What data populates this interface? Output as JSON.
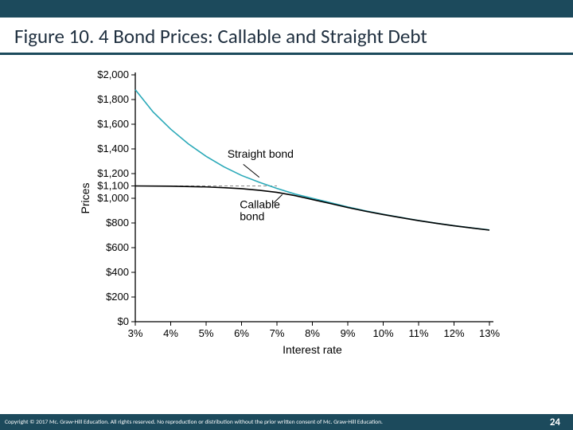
{
  "header": {
    "bar_color": "#1c4a5c",
    "title": "Figure 10. 4 Bond Prices: Callable and Straight Debt",
    "title_color": "#203040",
    "underline_color": "#1c4a5c"
  },
  "footer": {
    "bar_color": "#1c4a5c",
    "copyright": "Copyright © 2017 Mc. Graw-Hill Education. All rights reserved. No reproduction or distribution without the prior written consent of Mc. Graw-Hill Education.",
    "page_number": "24"
  },
  "chart": {
    "type": "line",
    "background_color": "#ffffff",
    "axis_color": "#000000",
    "tick_length": 5,
    "xlim": [
      3,
      13
    ],
    "ylim": [
      0,
      2000
    ],
    "xlabel": "Interest rate",
    "ylabel": "Prices",
    "label_fontsize": 14,
    "tick_fontsize": 13,
    "yticks": [
      {
        "v": 0,
        "label": "$0"
      },
      {
        "v": 200,
        "label": "$200"
      },
      {
        "v": 400,
        "label": "$400"
      },
      {
        "v": 600,
        "label": "$600"
      },
      {
        "v": 800,
        "label": "$800"
      },
      {
        "v": 1000,
        "label": "$1,000"
      },
      {
        "v": 1100,
        "label": "$1,100"
      },
      {
        "v": 1200,
        "label": "$1,200"
      },
      {
        "v": 1400,
        "label": "$1,400"
      },
      {
        "v": 1600,
        "label": "$1,600"
      },
      {
        "v": 1800,
        "label": "$1,800"
      },
      {
        "v": 2000,
        "label": "$2,000"
      }
    ],
    "xticks": [
      {
        "v": 3,
        "label": "3%"
      },
      {
        "v": 4,
        "label": "4%"
      },
      {
        "v": 5,
        "label": "5%"
      },
      {
        "v": 6,
        "label": "6%"
      },
      {
        "v": 7,
        "label": "7%"
      },
      {
        "v": 8,
        "label": "8%"
      },
      {
        "v": 9,
        "label": "9%"
      },
      {
        "v": 10,
        "label": "10%"
      },
      {
        "v": 11,
        "label": "11%"
      },
      {
        "v": 12,
        "label": "12%"
      },
      {
        "v": 13,
        "label": "13%"
      }
    ],
    "ref_line": {
      "y": 1100,
      "x_from": 3,
      "x_to": 7,
      "color": "#888888",
      "dash": "4 3",
      "width": 1
    },
    "series": [
      {
        "name": "Straight bond",
        "color": "#2aa9b8",
        "line_width": 1.6,
        "label_xy": [
          5.6,
          1330
        ],
        "pointer": {
          "from": [
            6.05,
            1275
          ],
          "to": [
            6.5,
            1170
          ]
        },
        "points": [
          {
            "x": 3.0,
            "y": 1880
          },
          {
            "x": 3.5,
            "y": 1700
          },
          {
            "x": 4.0,
            "y": 1560
          },
          {
            "x": 4.5,
            "y": 1440
          },
          {
            "x": 5.0,
            "y": 1340
          },
          {
            "x": 5.5,
            "y": 1255
          },
          {
            "x": 6.0,
            "y": 1185
          },
          {
            "x": 6.5,
            "y": 1130
          },
          {
            "x": 7.0,
            "y": 1080
          },
          {
            "x": 7.5,
            "y": 1035
          },
          {
            "x": 8.0,
            "y": 1000
          },
          {
            "x": 8.5,
            "y": 965
          },
          {
            "x": 9.0,
            "y": 930
          },
          {
            "x": 9.5,
            "y": 898
          },
          {
            "x": 10.0,
            "y": 870
          },
          {
            "x": 10.5,
            "y": 845
          },
          {
            "x": 11.0,
            "y": 820
          },
          {
            "x": 11.5,
            "y": 798
          },
          {
            "x": 12.0,
            "y": 778
          },
          {
            "x": 12.5,
            "y": 760
          },
          {
            "x": 13.0,
            "y": 743
          }
        ]
      },
      {
        "name": "Callable\nbond",
        "color": "#000000",
        "line_width": 1.6,
        "label_xy": [
          5.95,
          920
        ],
        "pointer": {
          "from": [
            6.9,
            960
          ],
          "to": [
            7.15,
            1030
          ]
        },
        "points": [
          {
            "x": 3.0,
            "y": 1100
          },
          {
            "x": 4.0,
            "y": 1098
          },
          {
            "x": 5.0,
            "y": 1092
          },
          {
            "x": 5.5,
            "y": 1086
          },
          {
            "x": 6.0,
            "y": 1078
          },
          {
            "x": 6.5,
            "y": 1065
          },
          {
            "x": 7.0,
            "y": 1048
          },
          {
            "x": 7.5,
            "y": 1022
          },
          {
            "x": 8.0,
            "y": 990
          },
          {
            "x": 8.5,
            "y": 958
          },
          {
            "x": 9.0,
            "y": 925
          },
          {
            "x": 9.5,
            "y": 895
          },
          {
            "x": 10.0,
            "y": 868
          },
          {
            "x": 10.5,
            "y": 843
          },
          {
            "x": 11.0,
            "y": 819
          },
          {
            "x": 11.5,
            "y": 797
          },
          {
            "x": 12.0,
            "y": 777
          },
          {
            "x": 12.5,
            "y": 759
          },
          {
            "x": 13.0,
            "y": 742
          }
        ]
      }
    ]
  }
}
